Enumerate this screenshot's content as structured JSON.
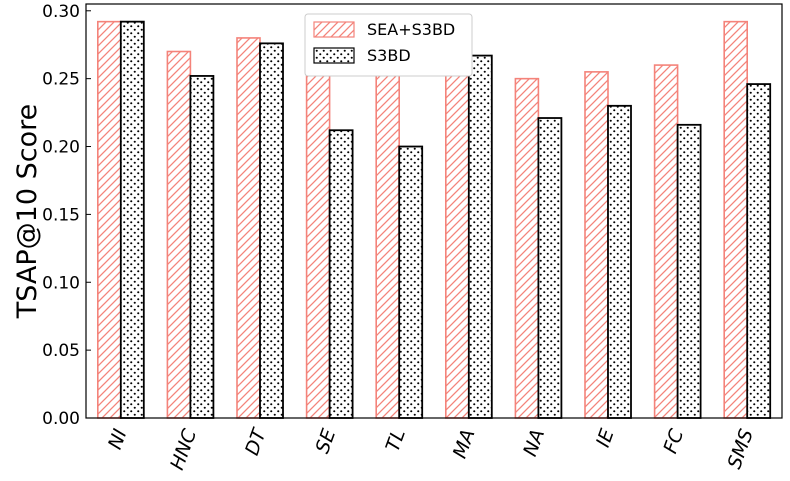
{
  "chart_data": {
    "type": "bar",
    "title": "",
    "xlabel": "",
    "ylabel": "TSAP@10 Score",
    "ylim": [
      0,
      0.305
    ],
    "yticks": [
      "0.00",
      "0.05",
      "0.10",
      "0.15",
      "0.20",
      "0.25",
      "0.30"
    ],
    "categories": [
      "NI",
      "HNC",
      "DT",
      "SE",
      "TL",
      "MA",
      "NA",
      "IE",
      "FC",
      "SMS"
    ],
    "series": [
      {
        "name": "SEA+S3BD",
        "color": "#f4837a",
        "pattern": "diagonal-hatch",
        "values": [
          0.292,
          0.27,
          0.28,
          0.265,
          0.262,
          0.283,
          0.25,
          0.255,
          0.26,
          0.292
        ]
      },
      {
        "name": "S3BD",
        "color": "#000000",
        "pattern": "dots",
        "values": [
          0.292,
          0.252,
          0.276,
          0.212,
          0.2,
          0.267,
          0.221,
          0.23,
          0.216,
          0.246
        ]
      }
    ],
    "grid": false,
    "legend_position": "top-center"
  }
}
